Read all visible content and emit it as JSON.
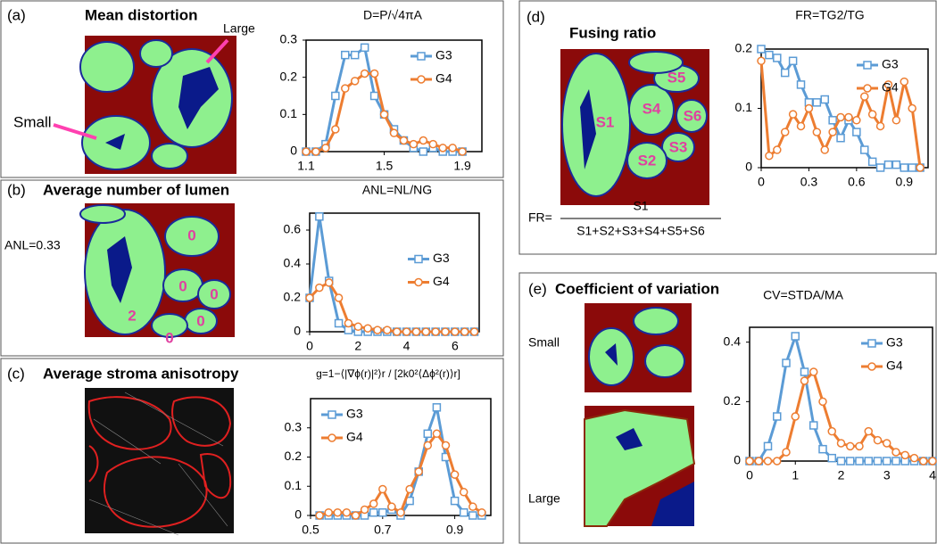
{
  "panels": [
    {
      "label": "(a)",
      "heading": "Mean distortion",
      "notes": [
        "Large",
        "Small"
      ]
    },
    {
      "label": "(b)",
      "heading": "Average number of lumen",
      "notes": [
        "ANL=0.33",
        "0",
        "0",
        "0",
        "0",
        "0",
        "2"
      ]
    },
    {
      "label": "(c)",
      "heading": "Average stroma anisotropy"
    },
    {
      "label": "(d)",
      "heading": "Fusing ratio",
      "notes": [
        "S5",
        "S4",
        "S6",
        "S1",
        "S3",
        "S2"
      ],
      "formula": {
        "lhs": "FR=",
        "numerator": "S1",
        "denominator": "S1+S2+S3+S4+S5+S6"
      }
    },
    {
      "label": "(e)",
      "heading": "Coefficient of variation",
      "notes": [
        "Small",
        "Large"
      ]
    }
  ],
  "chart_data": [
    {
      "type": "line",
      "title": "D=P/√4πA",
      "legend": "upper right",
      "x": [
        1.1,
        1.15,
        1.2,
        1.25,
        1.3,
        1.35,
        1.4,
        1.45,
        1.5,
        1.55,
        1.6,
        1.65,
        1.7,
        1.75,
        1.8,
        1.85,
        1.9
      ],
      "xlim": [
        1.1,
        2.0
      ],
      "xticks": [
        1.1,
        1.5,
        1.9
      ],
      "ylim": [
        0,
        0.3
      ],
      "yticks": [
        0,
        0.1,
        0.2,
        0.3
      ],
      "series": [
        {
          "name": "G3",
          "color": "#5b9bd5",
          "marker": "square",
          "values": [
            0,
            0,
            0.02,
            0.15,
            0.26,
            0.26,
            0.28,
            0.15,
            0.1,
            0.06,
            0.03,
            0.01,
            0,
            0.01,
            0,
            0,
            0
          ]
        },
        {
          "name": "G4",
          "color": "#ed7d31",
          "marker": "circle",
          "values": [
            0,
            0,
            0.01,
            0.06,
            0.17,
            0.19,
            0.21,
            0.21,
            0.1,
            0.05,
            0.03,
            0.02,
            0.03,
            0.02,
            0.01,
            0.01,
            0
          ]
        }
      ]
    },
    {
      "type": "line",
      "title": "ANL=NL/NG",
      "legend": "center right",
      "x": [
        0,
        0.4,
        0.8,
        1.2,
        1.6,
        2.0,
        2.4,
        2.8,
        3.2,
        3.6,
        4.0,
        4.4,
        4.8,
        5.2,
        5.6,
        6.0,
        6.4,
        6.8
      ],
      "xlim": [
        0,
        7
      ],
      "xticks": [
        0,
        2,
        4,
        6
      ],
      "ylim": [
        0,
        0.7
      ],
      "yticks": [
        0,
        0.2,
        0.4,
        0.6
      ],
      "series": [
        {
          "name": "G3",
          "color": "#5b9bd5",
          "marker": "square",
          "values": [
            0.2,
            0.68,
            0.3,
            0.05,
            0.01,
            0,
            0,
            0,
            0,
            0,
            0,
            0,
            0,
            0,
            0,
            0,
            0,
            0
          ]
        },
        {
          "name": "G4",
          "color": "#ed7d31",
          "marker": "circle",
          "values": [
            0.2,
            0.26,
            0.29,
            0.2,
            0.05,
            0.03,
            0.02,
            0.01,
            0.01,
            0,
            0,
            0,
            0,
            0,
            0,
            0,
            0,
            0
          ]
        }
      ]
    },
    {
      "type": "line",
      "title": "g=1−⟨|∇ϕ(r)|²⟩r / [2k0²⟨Δϕ²(r)⟩r]",
      "legend": "upper left",
      "x": [
        0.525,
        0.55,
        0.575,
        0.6,
        0.625,
        0.65,
        0.675,
        0.7,
        0.725,
        0.75,
        0.775,
        0.8,
        0.825,
        0.85,
        0.875,
        0.9,
        0.925,
        0.95,
        0.975
      ],
      "xlim": [
        0.5,
        1.0
      ],
      "xticks": [
        0.5,
        0.7,
        0.9
      ],
      "ylim": [
        0,
        0.4
      ],
      "yticks": [
        0,
        0.1,
        0.2,
        0.3
      ],
      "series": [
        {
          "name": "G3",
          "color": "#5b9bd5",
          "marker": "square",
          "values": [
            0,
            0,
            0,
            0,
            0,
            0,
            0.01,
            0.01,
            0.02,
            0,
            0.05,
            0.15,
            0.28,
            0.37,
            0.2,
            0.05,
            0.01,
            0,
            0
          ]
        },
        {
          "name": "G4",
          "color": "#ed7d31",
          "marker": "circle",
          "values": [
            0,
            0.01,
            0.01,
            0.01,
            0,
            0.02,
            0.04,
            0.09,
            0.03,
            0.01,
            0.09,
            0.15,
            0.24,
            0.28,
            0.24,
            0.14,
            0.08,
            0.03,
            0.01
          ]
        }
      ]
    },
    {
      "type": "line",
      "title": "FR=TG2/TG",
      "legend": "upper right",
      "x": [
        0,
        0.05,
        0.1,
        0.15,
        0.2,
        0.25,
        0.3,
        0.35,
        0.4,
        0.45,
        0.5,
        0.55,
        0.6,
        0.65,
        0.7,
        0.75,
        0.8,
        0.85,
        0.9,
        0.95,
        1.0
      ],
      "xlim": [
        0,
        1.05
      ],
      "xticks": [
        0,
        0.3,
        0.6,
        0.9
      ],
      "ylim": [
        0,
        0.2
      ],
      "yticks": [
        0,
        0.1,
        0.2
      ],
      "series": [
        {
          "name": "G3",
          "color": "#5b9bd5",
          "marker": "square",
          "values": [
            0.2,
            0.19,
            0.185,
            0.16,
            0.18,
            0.14,
            0.11,
            0.11,
            0.115,
            0.08,
            0.05,
            0.08,
            0.06,
            0.03,
            0.01,
            0,
            0.005,
            0.005,
            0,
            0,
            0
          ]
        },
        {
          "name": "G4",
          "color": "#ed7d31",
          "marker": "circle",
          "values": [
            0.18,
            0.02,
            0.03,
            0.06,
            0.09,
            0.07,
            0.1,
            0.06,
            0.03,
            0.06,
            0.085,
            0.085,
            0.08,
            0.12,
            0.09,
            0.07,
            0.14,
            0.08,
            0.145,
            0.1,
            0
          ]
        }
      ]
    },
    {
      "type": "line",
      "title": "CV=STDA/MA",
      "legend": "upper right",
      "x": [
        0,
        0.2,
        0.4,
        0.6,
        0.8,
        1.0,
        1.2,
        1.4,
        1.6,
        1.8,
        2.0,
        2.2,
        2.4,
        2.6,
        2.8,
        3.0,
        3.2,
        3.4,
        3.6,
        3.8,
        4.0
      ],
      "xlim": [
        0,
        4
      ],
      "xticks": [
        0,
        1,
        2,
        3,
        4
      ],
      "ylim": [
        0,
        0.45
      ],
      "yticks": [
        0,
        0.2,
        0.4
      ],
      "series": [
        {
          "name": "G3",
          "color": "#5b9bd5",
          "marker": "square",
          "values": [
            0,
            0,
            0.05,
            0.15,
            0.33,
            0.42,
            0.3,
            0.12,
            0.04,
            0.01,
            0,
            0,
            0,
            0,
            0,
            0,
            0,
            0,
            0,
            0,
            0
          ]
        },
        {
          "name": "G4",
          "color": "#ed7d31",
          "marker": "circle",
          "values": [
            0,
            0,
            0,
            0,
            0.03,
            0.15,
            0.27,
            0.3,
            0.2,
            0.1,
            0.06,
            0.05,
            0.05,
            0.1,
            0.07,
            0.06,
            0.03,
            0.02,
            0.01,
            0,
            0
          ]
        }
      ]
    }
  ]
}
